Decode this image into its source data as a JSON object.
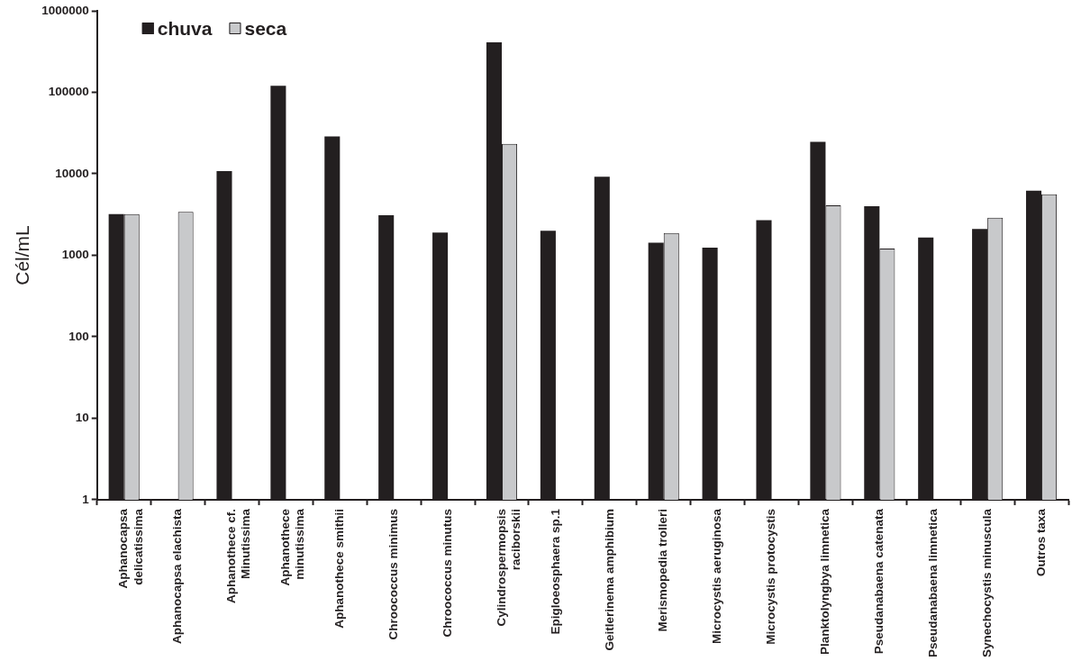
{
  "chart_data": {
    "type": "bar",
    "ylabel": "Cél/mL",
    "log": true,
    "ylim": [
      1,
      1000000
    ],
    "yticks": [
      1,
      10,
      100,
      1000,
      10000,
      100000,
      1000000
    ],
    "grid": false,
    "legend": "top left",
    "categories": [
      "Aphanocapsa\ndelicatissima",
      "Aphanocapsa elachista",
      "Aphanothece cf.\nMinutissima",
      "Aphanothece\nminutissima",
      "Aphanothece smithii",
      "Chroococcus minimus",
      "Chroococcus minutus",
      "Cylindrospermopsis\nraciborskii",
      "Epigloeosphaera sp.1",
      "Geitlerinema amphibium",
      "Merismopedia trolleri",
      "Microcystis aeruginosa",
      "Microcystis protocystis",
      "Planktolyngbya limnetica",
      "Pseudanabaena catenata",
      "Pseudanabaena limnetica",
      "Synechocystis minuscula",
      "Outros taxa"
    ],
    "series": [
      {
        "name": "chuva",
        "color": "#231f20",
        "values": [
          3200,
          null,
          10800,
          120000,
          28800,
          3100,
          1900,
          410000,
          2000,
          9200,
          1430,
          1240,
          2700,
          24700,
          4000,
          1650,
          2100,
          6200
        ]
      },
      {
        "name": "seca",
        "color": "#c8c9cb",
        "values": [
          3200,
          3400,
          null,
          null,
          null,
          null,
          null,
          23300,
          null,
          null,
          1880,
          null,
          null,
          4100,
          1210,
          null,
          2900,
          5600
        ]
      }
    ]
  }
}
